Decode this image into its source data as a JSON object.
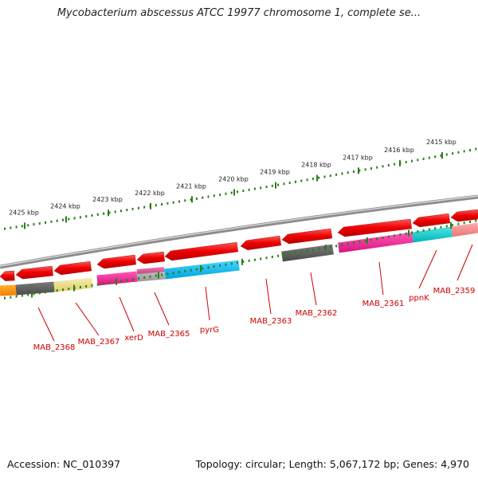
{
  "title": "Mycobacterium abscessus ATCC 19977 chromosome 1, complete se...",
  "accession": "Accession: NC_010397",
  "summary": "Topology: circular; Length: 5,067,172 bp; Genes: 4,970",
  "colors": {
    "gene_red": "#ee0000",
    "label_red": "#cc0000",
    "tick_green": "#2e7d1a",
    "backbone": "#9a9a9a"
  },
  "scale_labels": [
    "2425 kbp",
    "2424 kbp",
    "2423 kbp",
    "2422 kbp",
    "2421 kbp",
    "2420 kbp",
    "2419 kbp",
    "2418 kbp",
    "2417 kbp",
    "2416 kbp",
    "2415 kbp"
  ],
  "gene_labels": [
    "MAB_2368",
    "MAB_2367",
    "xerD",
    "MAB_2365",
    "pyrG",
    "MAB_2363",
    "MAB_2362",
    "MAB_2361",
    "ppnK",
    "MAB_2359"
  ]
}
